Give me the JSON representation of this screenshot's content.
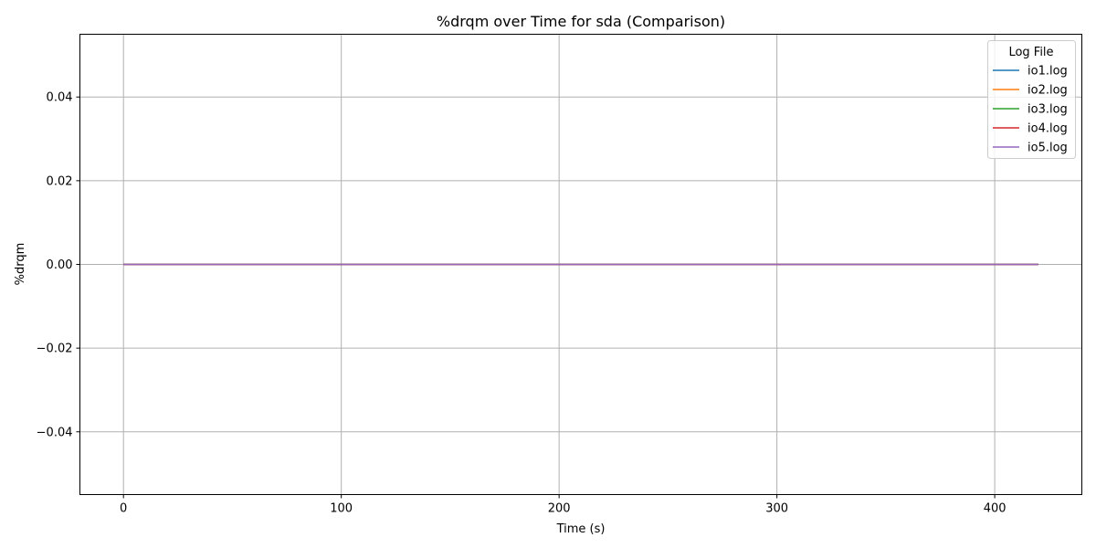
{
  "chart_data": {
    "type": "line",
    "title": "%drqm over Time for sda (Comparison)",
    "xlabel": "Time (s)",
    "ylabel": "%drqm",
    "xlim": [
      -20,
      440
    ],
    "ylim": [
      -0.055,
      0.055
    ],
    "x_ticks": [
      0,
      100,
      200,
      300,
      400
    ],
    "x_tick_labels": [
      "0",
      "100",
      "200",
      "300",
      "400"
    ],
    "y_ticks": [
      -0.04,
      -0.02,
      0.0,
      0.02,
      0.04
    ],
    "y_tick_labels": [
      "−0.04",
      "−0.02",
      "0.00",
      "0.02",
      "0.04"
    ],
    "grid": true,
    "legend": {
      "title": "Log File",
      "placement": "top-right"
    },
    "series": [
      {
        "name": "io1.log",
        "color": "#1f77b4",
        "x": [
          0,
          420
        ],
        "y": [
          0,
          0
        ]
      },
      {
        "name": "io2.log",
        "color": "#ff7f0e",
        "x": [
          0,
          420
        ],
        "y": [
          0,
          0
        ]
      },
      {
        "name": "io3.log",
        "color": "#2ca02c",
        "x": [
          0,
          420
        ],
        "y": [
          0,
          0
        ]
      },
      {
        "name": "io4.log",
        "color": "#d62728",
        "x": [
          0,
          420
        ],
        "y": [
          0,
          0
        ]
      },
      {
        "name": "io5.log",
        "color": "#9467bd",
        "x": [
          0,
          420
        ],
        "y": [
          0,
          0
        ]
      }
    ]
  }
}
